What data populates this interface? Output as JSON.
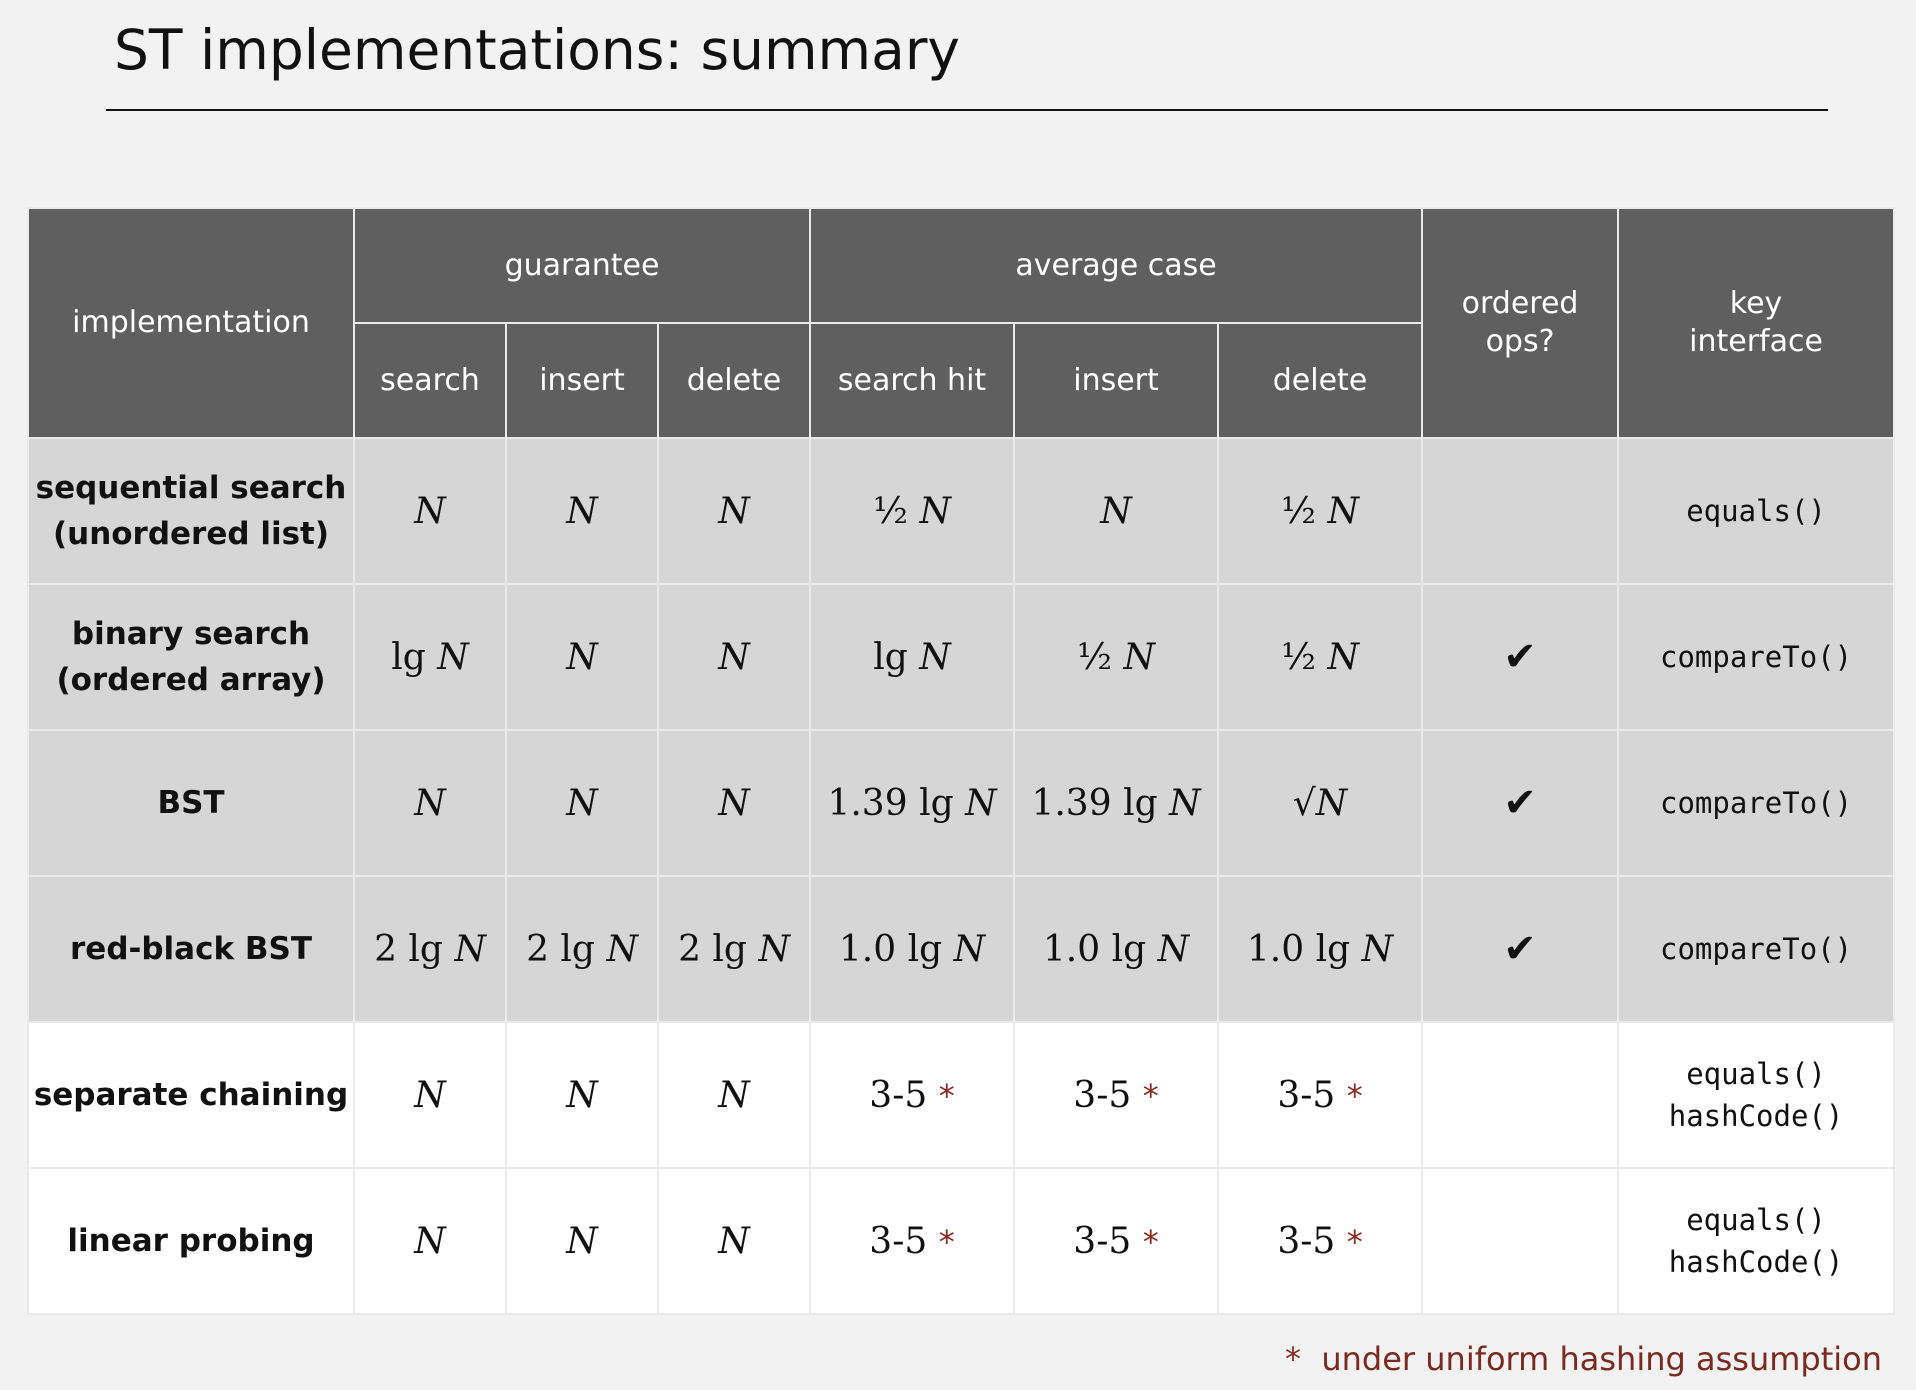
{
  "slide": {
    "title": "ST implementations:  summary"
  },
  "table": {
    "headers": {
      "implementation": "implementation",
      "guarantee": "guarantee",
      "average_case": "average case",
      "ordered_ops": [
        "ordered",
        "ops?"
      ],
      "key_interface": [
        "key",
        "interface"
      ],
      "sub": [
        "search",
        "insert",
        "delete",
        "search hit",
        "insert",
        "delete"
      ]
    },
    "rows": [
      {
        "name": [
          "sequential search",
          "(unordered list)"
        ],
        "cells": [
          {
            "coef": "",
            "lg": false,
            "sqrt": false,
            "var": "N",
            "star": false
          },
          {
            "coef": "",
            "lg": false,
            "sqrt": false,
            "var": "N",
            "star": false
          },
          {
            "coef": "",
            "lg": false,
            "sqrt": false,
            "var": "N",
            "star": false
          },
          {
            "coef": "½",
            "lg": false,
            "sqrt": false,
            "var": "N",
            "star": false
          },
          {
            "coef": "",
            "lg": false,
            "sqrt": false,
            "var": "N",
            "star": false
          },
          {
            "coef": "½",
            "lg": false,
            "sqrt": false,
            "var": "N",
            "star": false
          }
        ],
        "ordered": "",
        "key": [
          "equals()"
        ],
        "shade": "grey"
      },
      {
        "name": [
          "binary search",
          "(ordered array)"
        ],
        "cells": [
          {
            "coef": "",
            "lg": true,
            "sqrt": false,
            "var": "N",
            "star": false
          },
          {
            "coef": "",
            "lg": false,
            "sqrt": false,
            "var": "N",
            "star": false
          },
          {
            "coef": "",
            "lg": false,
            "sqrt": false,
            "var": "N",
            "star": false
          },
          {
            "coef": "",
            "lg": true,
            "sqrt": false,
            "var": "N",
            "star": false
          },
          {
            "coef": "½",
            "lg": false,
            "sqrt": false,
            "var": "N",
            "star": false
          },
          {
            "coef": "½",
            "lg": false,
            "sqrt": false,
            "var": "N",
            "star": false
          }
        ],
        "ordered": "✔",
        "key": [
          "compareTo()"
        ],
        "shade": "grey"
      },
      {
        "name": [
          "BST"
        ],
        "cells": [
          {
            "coef": "",
            "lg": false,
            "sqrt": false,
            "var": "N",
            "star": false
          },
          {
            "coef": "",
            "lg": false,
            "sqrt": false,
            "var": "N",
            "star": false
          },
          {
            "coef": "",
            "lg": false,
            "sqrt": false,
            "var": "N",
            "star": false
          },
          {
            "coef": "1.39",
            "lg": true,
            "sqrt": false,
            "var": "N",
            "star": false
          },
          {
            "coef": "1.39",
            "lg": true,
            "sqrt": false,
            "var": "N",
            "star": false
          },
          {
            "coef": "",
            "lg": false,
            "sqrt": true,
            "var": "N",
            "star": false
          }
        ],
        "ordered": "✔",
        "key": [
          "compareTo()"
        ],
        "shade": "grey"
      },
      {
        "name": [
          "red-black BST"
        ],
        "cells": [
          {
            "coef": "2",
            "lg": true,
            "sqrt": false,
            "var": "N",
            "star": false
          },
          {
            "coef": "2",
            "lg": true,
            "sqrt": false,
            "var": "N",
            "star": false
          },
          {
            "coef": "2",
            "lg": true,
            "sqrt": false,
            "var": "N",
            "star": false
          },
          {
            "coef": "1.0",
            "lg": true,
            "sqrt": false,
            "var": "N",
            "star": false
          },
          {
            "coef": "1.0",
            "lg": true,
            "sqrt": false,
            "var": "N",
            "star": false
          },
          {
            "coef": "1.0",
            "lg": true,
            "sqrt": false,
            "var": "N",
            "star": false
          }
        ],
        "ordered": "✔",
        "key": [
          "compareTo()"
        ],
        "shade": "grey"
      },
      {
        "name": [
          "separate chaining"
        ],
        "cells": [
          {
            "coef": "",
            "lg": false,
            "sqrt": false,
            "var": "N",
            "star": false
          },
          {
            "coef": "",
            "lg": false,
            "sqrt": false,
            "var": "N",
            "star": false
          },
          {
            "coef": "",
            "lg": false,
            "sqrt": false,
            "var": "N",
            "star": false
          },
          {
            "coef": "3-5",
            "lg": false,
            "sqrt": false,
            "var": "",
            "star": true
          },
          {
            "coef": "3-5",
            "lg": false,
            "sqrt": false,
            "var": "",
            "star": true
          },
          {
            "coef": "3-5",
            "lg": false,
            "sqrt": false,
            "var": "",
            "star": true
          }
        ],
        "ordered": "",
        "key": [
          "equals()",
          "hashCode()"
        ],
        "shade": "white"
      },
      {
        "name": [
          "linear probing"
        ],
        "cells": [
          {
            "coef": "",
            "lg": false,
            "sqrt": false,
            "var": "N",
            "star": false
          },
          {
            "coef": "",
            "lg": false,
            "sqrt": false,
            "var": "N",
            "star": false
          },
          {
            "coef": "",
            "lg": false,
            "sqrt": false,
            "var": "N",
            "star": false
          },
          {
            "coef": "3-5",
            "lg": false,
            "sqrt": false,
            "var": "",
            "star": true
          },
          {
            "coef": "3-5",
            "lg": false,
            "sqrt": false,
            "var": "",
            "star": true
          },
          {
            "coef": "3-5",
            "lg": false,
            "sqrt": false,
            "var": "",
            "star": true
          }
        ],
        "ordered": "",
        "key": [
          "equals()",
          "hashCode()"
        ],
        "shade": "white"
      }
    ],
    "star_symbol": "*",
    "lg_symbol": "lg",
    "sqrt_symbol": "√"
  },
  "footnote": {
    "star": "*",
    "text": "under uniform hashing assumption"
  },
  "colors": {
    "header_bg": "#5f5f5f",
    "row_grey": "#d6d6d6",
    "row_white": "#ffffff",
    "star": "#8b2a20"
  }
}
